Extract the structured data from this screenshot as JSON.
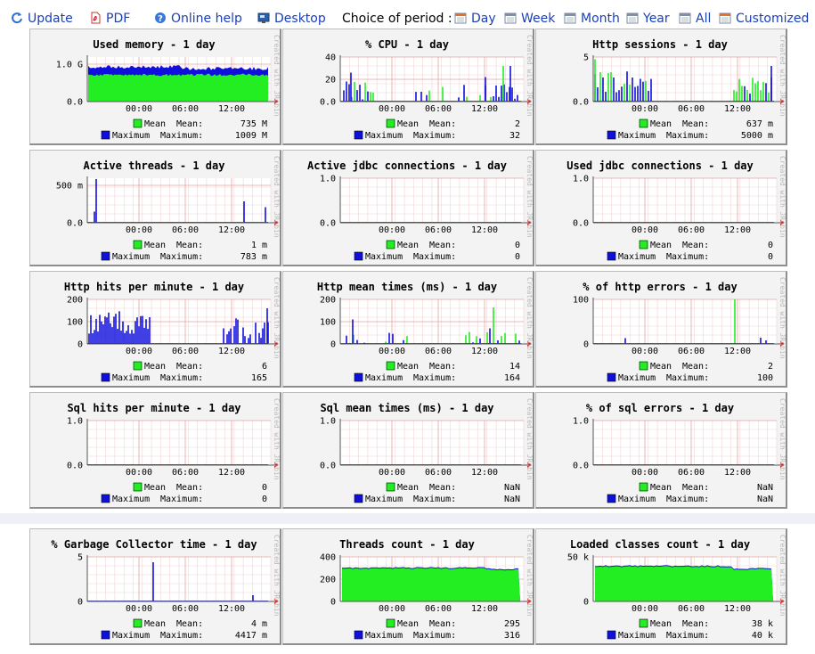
{
  "toolbar": {
    "update": "Update",
    "pdf": "PDF",
    "online_help": "Online help",
    "desktop": "Desktop",
    "period_label": "Choice of period :",
    "periods": [
      "Day",
      "Week",
      "Month",
      "Year",
      "All",
      "Customized"
    ]
  },
  "icons": {
    "update": "refresh-icon",
    "pdf": "pdf-icon",
    "online_help": "help-icon",
    "desktop": "desktop-icon",
    "period": "calendar-icon"
  },
  "colors": {
    "mean": "#22ee22",
    "maximum": "#1010dd",
    "link": "#1a3fb8"
  },
  "watermark": "Created with JRobin",
  "legend": {
    "mean": "Mean",
    "maximum": "Maximum",
    "mean_field": "Mean:",
    "maximum_field": "Maximum:"
  },
  "charts": [
    {
      "title": "Used memory - 1 day",
      "yticks": [
        "1.0 G",
        "0.0"
      ],
      "xticks": [
        "00:00",
        "06:00",
        "12:00"
      ],
      "mean": "735 M",
      "maximum": "1009 M",
      "profile": "memory"
    },
    {
      "title": "% CPU - 1 day",
      "yticks": [
        "40",
        "20",
        "0.0"
      ],
      "xticks": [
        "00:00",
        "06:00",
        "12:00"
      ],
      "mean": "2",
      "maximum": "32",
      "profile": "cpu"
    },
    {
      "title": "Http sessions - 1 day",
      "yticks": [
        "5",
        "0.0"
      ],
      "xticks": [
        "00:00",
        "06:00",
        "12:00"
      ],
      "mean": "637 m",
      "maximum": "5000 m",
      "profile": "sessions"
    },
    {
      "title": "Active threads - 1 day",
      "yticks": [
        "500 m",
        "0.0"
      ],
      "xticks": [
        "00:00",
        "06:00",
        "12:00"
      ],
      "mean": "1 m",
      "maximum": "783 m",
      "profile": "threads_active"
    },
    {
      "title": "Active jdbc connections - 1 day",
      "yticks": [
        "1.0",
        "0.0"
      ],
      "xticks": [
        "00:00",
        "06:00",
        "12:00"
      ],
      "mean": "0",
      "maximum": "0",
      "profile": "empty"
    },
    {
      "title": "Used jdbc connections - 1 day",
      "yticks": [
        "1.0",
        "0.0"
      ],
      "xticks": [
        "00:00",
        "06:00",
        "12:00"
      ],
      "mean": "0",
      "maximum": "0",
      "profile": "empty"
    },
    {
      "title": "Http hits per minute - 1 day",
      "yticks": [
        "200",
        "100",
        "0"
      ],
      "xticks": [
        "00:00",
        "06:00",
        "12:00"
      ],
      "mean": "6",
      "maximum": "165",
      "profile": "hits"
    },
    {
      "title": "Http mean times (ms) - 1 day",
      "yticks": [
        "200",
        "100",
        "0"
      ],
      "xticks": [
        "00:00",
        "06:00",
        "12:00"
      ],
      "mean": "14",
      "maximum": "164",
      "profile": "times"
    },
    {
      "title": "% of http errors - 1 day",
      "yticks": [
        "100",
        "0"
      ],
      "xticks": [
        "00:00",
        "06:00",
        "12:00"
      ],
      "mean": "2",
      "maximum": "100",
      "profile": "errors"
    },
    {
      "title": "Sql hits per minute - 1 day",
      "yticks": [
        "1.0",
        "0.0"
      ],
      "xticks": [
        "00:00",
        "06:00",
        "12:00"
      ],
      "mean": "0",
      "maximum": "0",
      "profile": "empty"
    },
    {
      "title": "Sql mean times (ms) - 1 day",
      "yticks": [
        "1.0",
        "0.0"
      ],
      "xticks": [
        "00:00",
        "06:00",
        "12:00"
      ],
      "mean": "NaN",
      "maximum": "NaN",
      "profile": "empty"
    },
    {
      "title": "% of sql errors - 1 day",
      "yticks": [
        "1.0",
        "0.0"
      ],
      "xticks": [
        "00:00",
        "06:00",
        "12:00"
      ],
      "mean": "NaN",
      "maximum": "NaN",
      "profile": "empty"
    },
    {
      "title": "% Garbage Collector time - 1 day",
      "yticks": [
        "5",
        "0"
      ],
      "xticks": [
        "00:00",
        "06:00",
        "12:00"
      ],
      "mean": "4 m",
      "maximum": "4417 m",
      "profile": "gc"
    },
    {
      "title": "Threads count - 1 day",
      "yticks": [
        "400",
        "200",
        "0"
      ],
      "xticks": [
        "00:00",
        "06:00",
        "12:00"
      ],
      "mean": "295",
      "maximum": "316",
      "profile": "threads_count"
    },
    {
      "title": "Loaded classes count - 1 day",
      "yticks": [
        "50 k",
        "0"
      ],
      "xticks": [
        "00:00",
        "06:00",
        "12:00"
      ],
      "mean": "38 k",
      "maximum": "40 k",
      "profile": "classes"
    }
  ]
}
